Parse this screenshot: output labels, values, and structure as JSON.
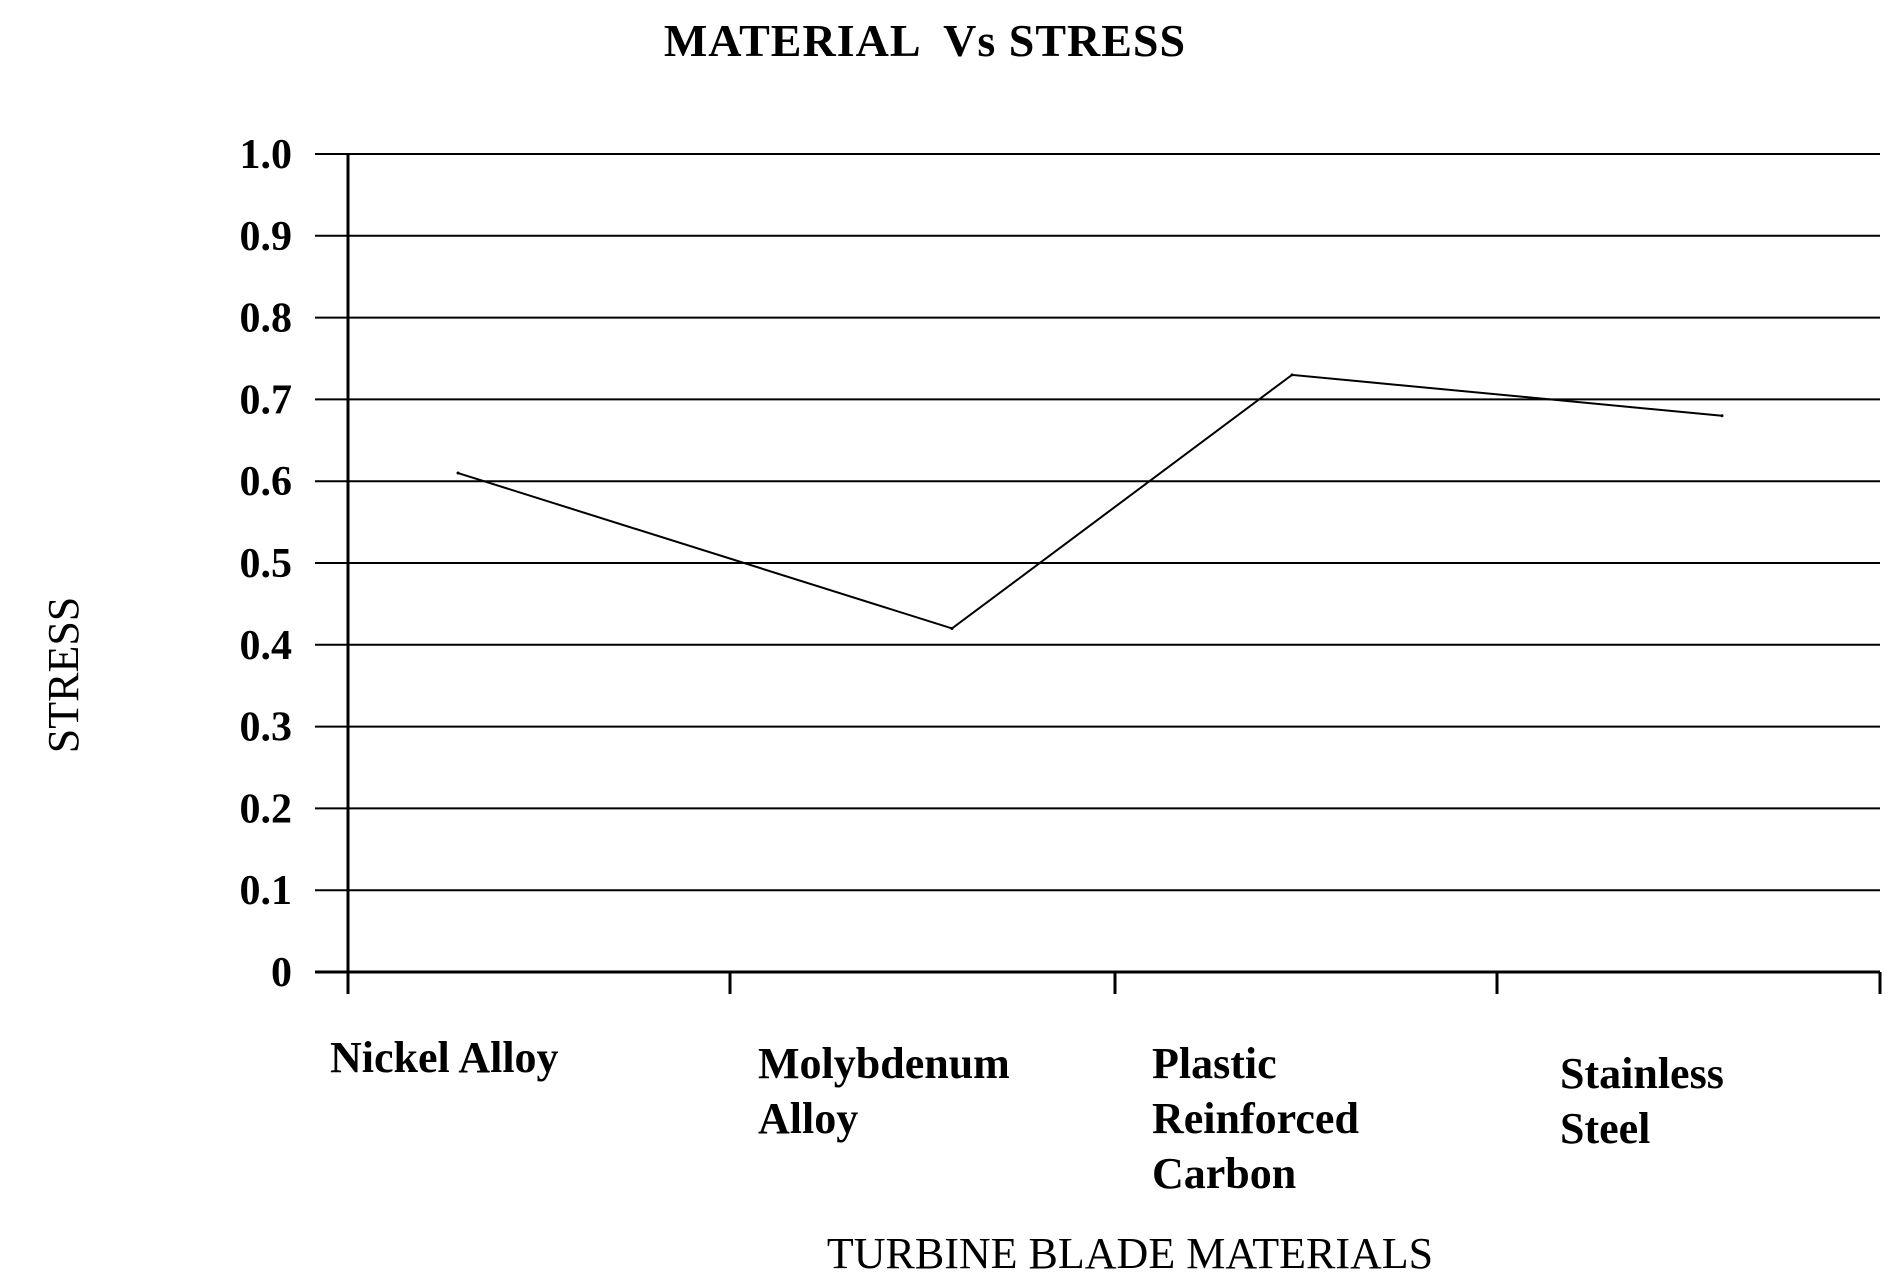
{
  "chart_data": {
    "type": "line",
    "title": "MATERIAL  Vs STRESS",
    "xlabel": "TURBINE BLADE MATERIALS",
    "ylabel": "STRESS",
    "categories": [
      "Nickel Alloy",
      "Molybdenum Alloy",
      "Plastic Reinforced Carbon",
      "Stainless Steel"
    ],
    "category_lines": [
      [
        "Nickel Alloy"
      ],
      [
        "Molybdenum",
        "Alloy"
      ],
      [
        "Plastic",
        "Reinforced",
        "Carbon"
      ],
      [
        "Stainless",
        "Steel"
      ]
    ],
    "series": [
      {
        "values": [
          0.61,
          0.42,
          0.73,
          0.68
        ]
      }
    ],
    "yticks": [
      "0",
      "0.1",
      "0.2",
      "0.3",
      "0.4",
      "0.5",
      "0.6",
      "0.7",
      "0.8",
      "0.9",
      "1.0"
    ],
    "ylim": [
      0,
      1.0
    ],
    "grid": true,
    "legend": "none",
    "colors": {
      "line": "#000000",
      "grid": "#000000",
      "background": "#ffffff"
    }
  }
}
